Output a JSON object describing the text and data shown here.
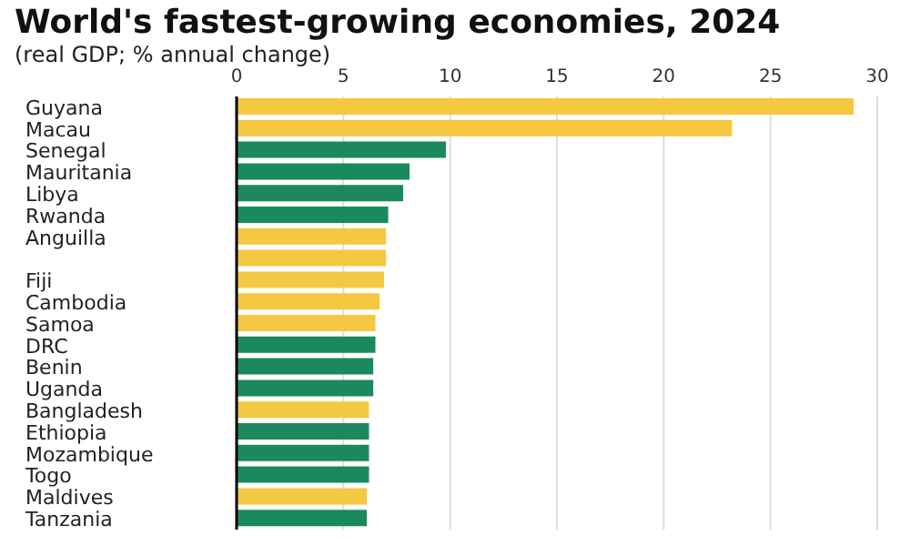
{
  "chart_data": {
    "type": "bar",
    "orientation": "horizontal",
    "title": "World's fastest-growing economies, 2024",
    "subtitle": "(real GDP; % annual change)",
    "categories": [
      "Guyana",
      "Macau",
      "Senegal",
      "Mauritania",
      "Libya",
      "Rwanda",
      "Anguilla",
      null,
      "Fiji",
      "Cambodia",
      "Samoa",
      "DRC",
      "Benin",
      "Uganda",
      "Bangladesh",
      "Ethiopia",
      "Mozambique",
      "Togo",
      "Maldives",
      "Tanzania"
    ],
    "values": [
      28.9,
      23.2,
      9.8,
      8.1,
      7.8,
      7.1,
      7.0,
      7.0,
      6.9,
      6.7,
      6.5,
      6.5,
      6.4,
      6.4,
      6.2,
      6.2,
      6.2,
      6.2,
      6.1,
      6.1
    ],
    "colors": [
      "#f5c842",
      "#f5c842",
      "#1a8a5e",
      "#1a8a5e",
      "#1a8a5e",
      "#1a8a5e",
      "#f5c842",
      "#f5c842",
      "#f5c842",
      "#f5c842",
      "#f5c842",
      "#1a8a5e",
      "#1a8a5e",
      "#1a8a5e",
      "#f5c842",
      "#1a8a5e",
      "#1a8a5e",
      "#1a8a5e",
      "#f5c842",
      "#1a8a5e"
    ],
    "xlim": [
      0,
      30
    ],
    "xticks": [
      0,
      5,
      10,
      15,
      20,
      25,
      30
    ],
    "grid": "x"
  }
}
